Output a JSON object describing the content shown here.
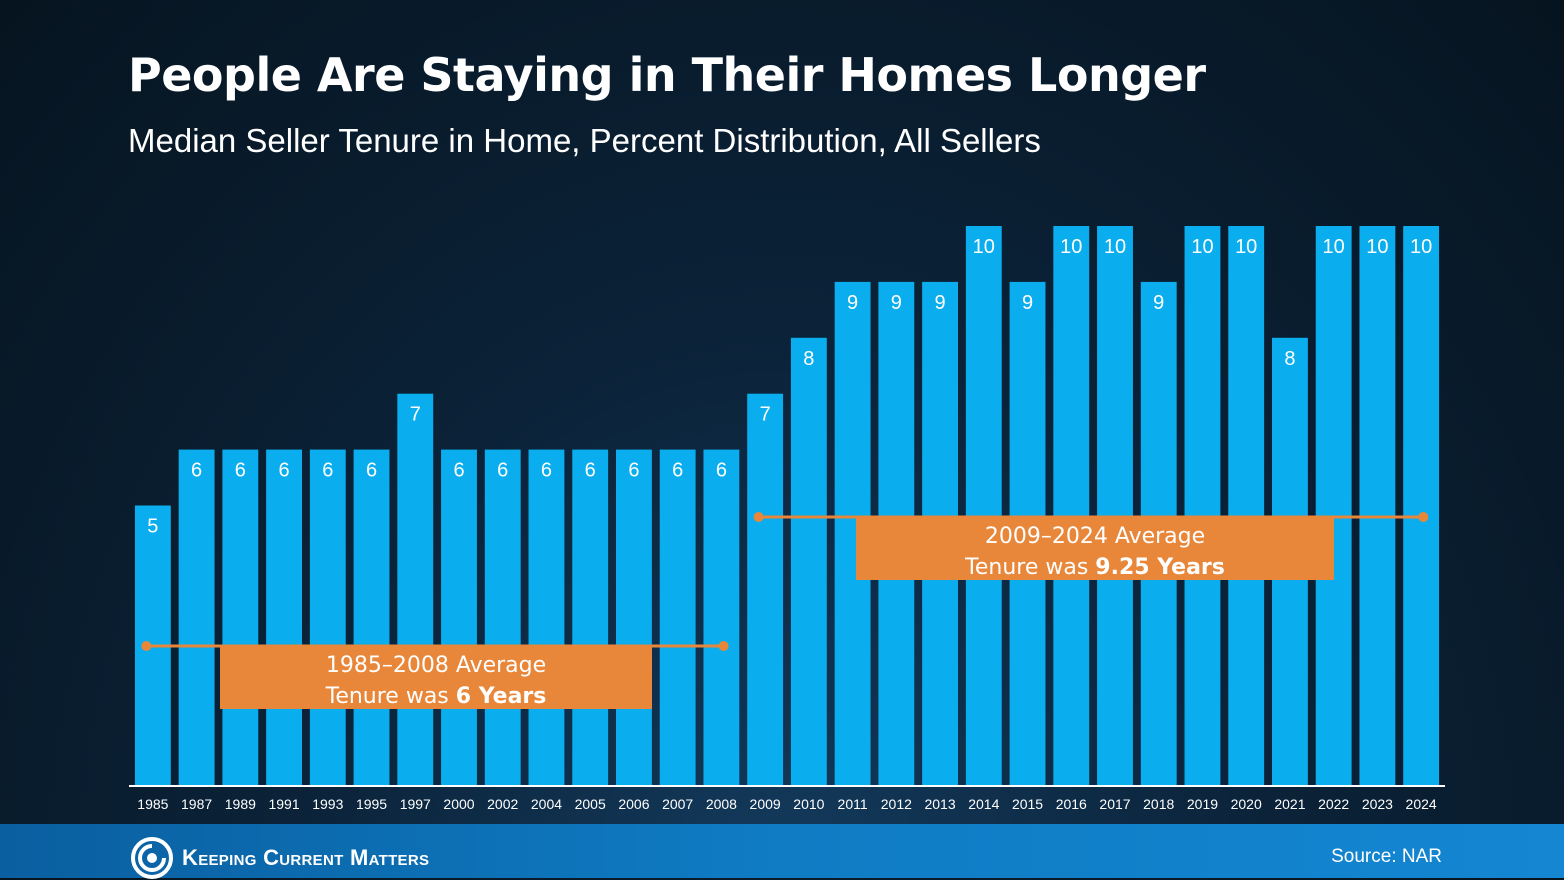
{
  "header": {
    "title": "People Are Staying in Their Homes Longer",
    "subtitle": "Median Seller Tenure in Home, Percent Distribution, All Sellers"
  },
  "footer": {
    "logo_text": "Keeping Current Matters",
    "source": "Source: NAR"
  },
  "colors": {
    "bar": "#0aaeef",
    "annotation": "#e8873a",
    "average_line": "#e8873a"
  },
  "chart_data": {
    "type": "bar",
    "categories": [
      "1985",
      "1987",
      "1989",
      "1991",
      "1993",
      "1995",
      "1997",
      "2000",
      "2002",
      "2004",
      "2005",
      "2006",
      "2007",
      "2008",
      "2009",
      "2010",
      "2011",
      "2012",
      "2013",
      "2014",
      "2015",
      "2016",
      "2017",
      "2018",
      "2019",
      "2020",
      "2021",
      "2022",
      "2023",
      "2024"
    ],
    "values": [
      5,
      6,
      6,
      6,
      6,
      6,
      7,
      6,
      6,
      6,
      6,
      6,
      6,
      6,
      7,
      8,
      9,
      9,
      9,
      10,
      9,
      10,
      10,
      9,
      10,
      10,
      8,
      10,
      10,
      10
    ],
    "ylim": [
      0,
      10
    ],
    "grid": false,
    "annotations": [
      {
        "from": "1985",
        "to": "2008",
        "value": 6,
        "line1": "1985–2008 Average",
        "line2_prefix": "Tenure was ",
        "line2_bold": "6 Years"
      },
      {
        "from": "2009",
        "to": "2024",
        "value": 9.25,
        "line1": "2009–2024 Average",
        "line2_prefix": "Tenure was ",
        "line2_bold": "9.25 Years"
      }
    ]
  }
}
